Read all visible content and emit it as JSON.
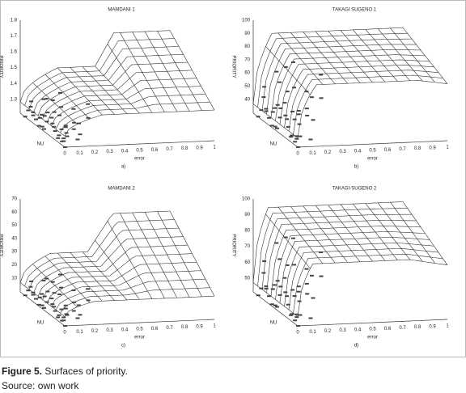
{
  "panels": [
    {
      "title": "MAMDANI 1",
      "y_label": "PRIORITY",
      "x_label": "error",
      "sub_label": "a)",
      "corner_label": "NU",
      "y_ticks": [
        "1.8",
        "1.7",
        "1.6",
        "1.5",
        "1.4",
        "1.3"
      ],
      "x_ticks": [
        "0",
        "0.1",
        "0.2",
        "0.3",
        "0.4",
        "0.5",
        "0.6",
        "0.7",
        "0.8",
        "0.9",
        "1"
      ]
    },
    {
      "title": "TAKAGI SUGENO 1",
      "y_label": "PRIORITY",
      "x_label": "error",
      "sub_label": "b)",
      "corner_label": "NU",
      "y_ticks": [
        "100",
        "90",
        "80",
        "70",
        "60",
        "50",
        "40"
      ],
      "x_ticks": [
        "0",
        "0.1",
        "0.2",
        "0.3",
        "0.4",
        "0.5",
        "0.6",
        "0.7",
        "0.8",
        "0.9",
        "1"
      ]
    },
    {
      "title": "MAMDANI 2",
      "y_label": "PRIORITY",
      "x_label": "error",
      "sub_label": "c)",
      "corner_label": "NU",
      "y_ticks": [
        "70",
        "60",
        "50",
        "40",
        "30",
        "20",
        "10"
      ],
      "x_ticks": [
        "0",
        "0.1",
        "0.2",
        "0.3",
        "0.4",
        "0.5",
        "0.6",
        "0.7",
        "0.8",
        "0.9",
        "1"
      ]
    },
    {
      "title": "TAKAGI-SUGENO 2",
      "y_label": "PRIORITY",
      "x_label": "error",
      "sub_label": "d)",
      "corner_label": "NU",
      "y_ticks": [
        "100",
        "90",
        "80",
        "70",
        "60",
        "50"
      ],
      "x_ticks": [
        "0",
        "0.1",
        "0.2",
        "0.3",
        "0.4",
        "0.5",
        "0.6",
        "0.7",
        "0.8",
        "0.9",
        "1"
      ]
    }
  ],
  "caption": {
    "label": "Figure 5.",
    "text": "Surfaces of priority.",
    "source": "Source: own work"
  }
}
